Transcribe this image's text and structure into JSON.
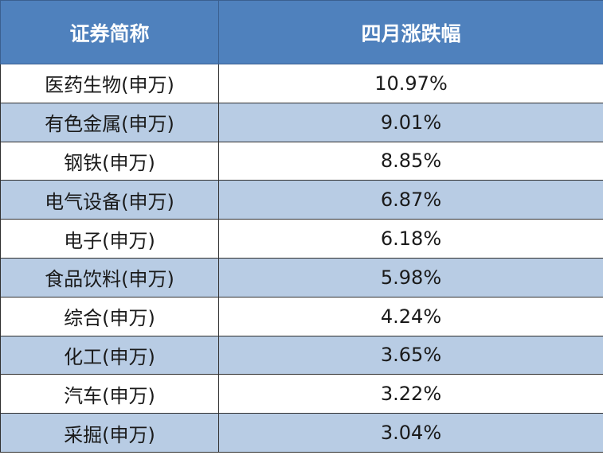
{
  "chart_data": {
    "type": "table",
    "columns": [
      "证券简称",
      "四月涨跌幅"
    ],
    "rows": [
      [
        "医药生物(申万)",
        "10.97%"
      ],
      [
        "有色金属(申万)",
        "9.01%"
      ],
      [
        "钢铁(申万)",
        "8.85%"
      ],
      [
        "电气设备(申万)",
        "6.87%"
      ],
      [
        "电子(申万)",
        "6.18%"
      ],
      [
        "食品饮料(申万)",
        "5.98%"
      ],
      [
        "综合(申万)",
        "4.24%"
      ],
      [
        "化工(申万)",
        "3.65%"
      ],
      [
        "汽车(申万)",
        "3.22%"
      ],
      [
        "采掘(申万)",
        "3.04%"
      ]
    ]
  },
  "colors": {
    "header_bg": "#4f81bd",
    "header_text": "#ffffff",
    "band_row": "#b8cce4",
    "plain_row": "#ffffff",
    "cell_text": "#1a1a1a",
    "border": "#2f2f2f"
  }
}
